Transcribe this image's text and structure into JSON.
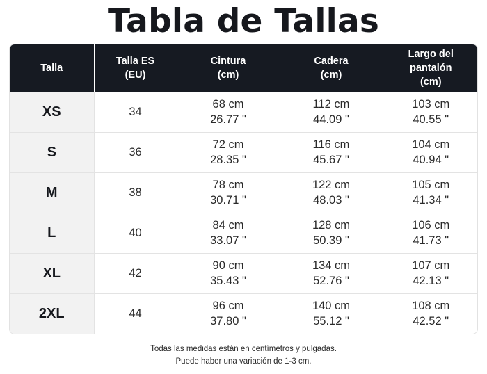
{
  "title": "Tabla de Tallas",
  "headers": [
    "Talla",
    "Talla ES\n(EU)",
    "Cintura\n(cm)",
    "Cadera\n(cm)",
    "Largo del\npantalón\n(cm)"
  ],
  "rows": [
    {
      "size": "XS",
      "es": "34",
      "waist_cm": "68 cm",
      "waist_in": "26.77 \"",
      "hip_cm": "112 cm",
      "hip_in": "44.09 \"",
      "length_cm": "103 cm",
      "length_in": "40.55 \""
    },
    {
      "size": "S",
      "es": "36",
      "waist_cm": "72 cm",
      "waist_in": "28.35 \"",
      "hip_cm": "116 cm",
      "hip_in": "45.67 \"",
      "length_cm": "104 cm",
      "length_in": "40.94 \""
    },
    {
      "size": "M",
      "es": "38",
      "waist_cm": "78 cm",
      "waist_in": "30.71 \"",
      "hip_cm": "122 cm",
      "hip_in": "48.03 \"",
      "length_cm": "105 cm",
      "length_in": "41.34 \""
    },
    {
      "size": "L",
      "es": "40",
      "waist_cm": "84 cm",
      "waist_in": "33.07 \"",
      "hip_cm": "128 cm",
      "hip_in": "50.39 \"",
      "length_cm": "106 cm",
      "length_in": "41.73 \""
    },
    {
      "size": "XL",
      "es": "42",
      "waist_cm": "90 cm",
      "waist_in": "35.43 \"",
      "hip_cm": "134 cm",
      "hip_in": "52.76 \"",
      "length_cm": "107 cm",
      "length_in": "42.13 \""
    },
    {
      "size": "2XL",
      "es": "44",
      "waist_cm": "96 cm",
      "waist_in": "37.80 \"",
      "hip_cm": "140 cm",
      "hip_in": "55.12 \"",
      "length_cm": "108 cm",
      "length_in": "42.52 \""
    }
  ],
  "notes": {
    "line1": "Todas las medidas están en centímetros y pulgadas.",
    "line2": "Puede haber una variación de 1-3 cm."
  },
  "colors": {
    "header_bg": "#161a22",
    "size_col_bg": "#f2f2f2"
  }
}
